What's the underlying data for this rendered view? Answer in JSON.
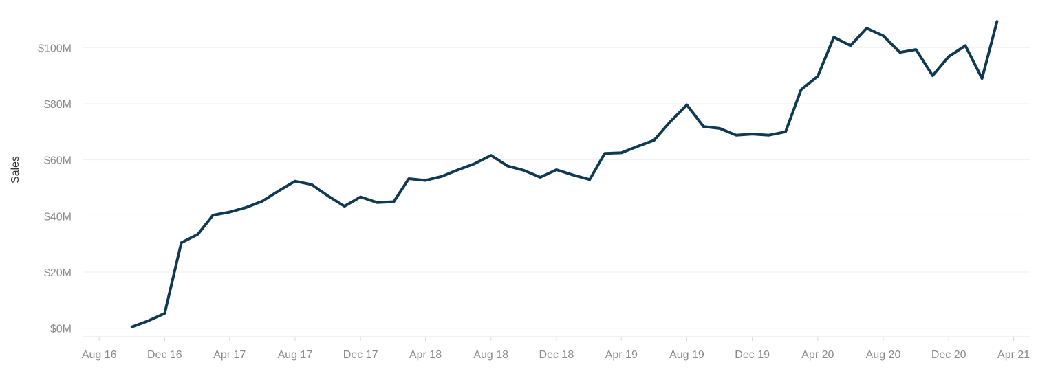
{
  "chart_data": {
    "type": "line",
    "title": "",
    "xlabel": "",
    "ylabel": "Sales",
    "xlim": [
      "2016-07-01",
      "2021-05-01"
    ],
    "ylim": [
      -3,
      115
    ],
    "y_ticks": [
      {
        "value": 0,
        "label": "$0M"
      },
      {
        "value": 20,
        "label": "$20M"
      },
      {
        "value": 40,
        "label": "$40M"
      },
      {
        "value": 60,
        "label": "$60M"
      },
      {
        "value": 80,
        "label": "$80M"
      },
      {
        "value": 100,
        "label": "$100M"
      }
    ],
    "x_ticks": [
      {
        "date": "2016-08-01",
        "label": "Aug 16"
      },
      {
        "date": "2016-12-01",
        "label": "Dec 16"
      },
      {
        "date": "2017-04-01",
        "label": "Apr 17"
      },
      {
        "date": "2017-08-01",
        "label": "Aug 17"
      },
      {
        "date": "2017-12-01",
        "label": "Dec 17"
      },
      {
        "date": "2018-04-01",
        "label": "Apr 18"
      },
      {
        "date": "2018-08-01",
        "label": "Aug 18"
      },
      {
        "date": "2018-12-01",
        "label": "Dec 18"
      },
      {
        "date": "2019-04-01",
        "label": "Apr 19"
      },
      {
        "date": "2019-08-01",
        "label": "Aug 19"
      },
      {
        "date": "2019-12-01",
        "label": "Dec 19"
      },
      {
        "date": "2020-04-01",
        "label": "Apr 20"
      },
      {
        "date": "2020-08-01",
        "label": "Aug 20"
      },
      {
        "date": "2020-12-01",
        "label": "Dec 20"
      },
      {
        "date": "2021-04-01",
        "label": "Apr 21"
      }
    ],
    "grid": true,
    "legend": "none",
    "line_color": "#0f3a52",
    "series": [
      {
        "x": [
          "2016-10-01",
          "2016-11-01",
          "2016-12-01",
          "2017-01-01",
          "2017-02-01",
          "2017-03-01",
          "2017-04-01",
          "2017-05-01",
          "2017-06-01",
          "2017-07-01",
          "2017-08-01",
          "2017-09-01",
          "2017-10-01",
          "2017-11-01",
          "2017-12-01",
          "2018-01-01",
          "2018-02-01",
          "2018-03-01",
          "2018-04-01",
          "2018-05-01",
          "2018-06-01",
          "2018-07-01",
          "2018-08-01",
          "2018-09-01",
          "2018-10-01",
          "2018-11-01",
          "2018-12-01",
          "2019-01-01",
          "2019-02-01",
          "2019-03-01",
          "2019-04-01",
          "2019-05-01",
          "2019-06-01",
          "2019-07-01",
          "2019-08-01",
          "2019-09-01",
          "2019-10-01",
          "2019-11-01",
          "2019-12-01",
          "2020-01-01",
          "2020-02-01",
          "2020-03-01",
          "2020-04-01",
          "2020-05-01",
          "2020-06-01",
          "2020-07-01",
          "2020-08-01",
          "2020-09-01",
          "2020-10-01",
          "2020-11-01",
          "2020-12-01",
          "2021-01-01",
          "2021-02-01",
          "2021-03-01"
        ],
        "values": [
          0.5,
          2.7,
          5.3,
          30.5,
          33.5,
          40.3,
          41.4,
          43.0,
          45.3,
          48.9,
          52.4,
          51.2,
          47.2,
          43.5,
          46.8,
          44.8,
          45.1,
          53.3,
          52.7,
          54.1,
          56.5,
          58.6,
          61.6,
          57.8,
          56.3,
          53.8,
          56.5,
          54.6,
          53.0,
          62.3,
          62.5,
          64.8,
          67.0,
          73.6,
          79.6,
          71.9,
          71.2,
          68.8,
          69.2,
          68.8,
          70.0,
          85.0,
          89.8,
          103.7,
          100.7,
          106.9,
          104.2,
          98.3,
          99.3,
          90.0,
          96.8,
          100.7,
          89.0,
          109.3
        ]
      }
    ]
  }
}
